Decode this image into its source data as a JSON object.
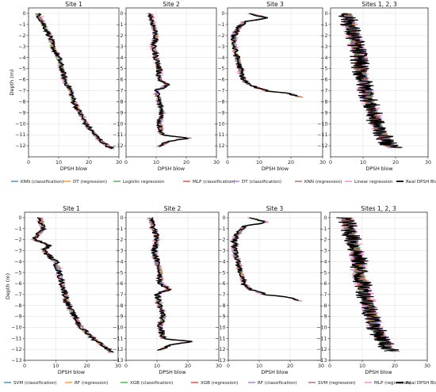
{
  "chart_data": [
    {
      "row": "top",
      "type": "line",
      "ylabel": "Depth (m)",
      "xlabel": "DPSH blow",
      "panels": [
        {
          "title": "Site 1",
          "xlim": [
            0,
            30
          ],
          "xticks": [
            0,
            10,
            20,
            30
          ],
          "ylim": [
            -13,
            0.5
          ],
          "yticks": [
            0,
            -1,
            -2,
            -3,
            -4,
            -5,
            -6,
            -7,
            -8,
            -9,
            -10,
            -11,
            -12
          ],
          "depth_max": 12.3,
          "real_profile": [
            [
              0,
              3
            ],
            [
              1,
              5
            ],
            [
              2,
              7
            ],
            [
              3,
              8
            ],
            [
              4,
              10
            ],
            [
              5,
              11
            ],
            [
              6,
              12
            ],
            [
              7,
              14
            ],
            [
              8,
              15
            ],
            [
              9,
              17
            ],
            [
              10,
              19
            ],
            [
              11,
              22
            ],
            [
              11.8,
              25
            ],
            [
              12.3,
              28
            ]
          ]
        },
        {
          "title": "Site 2",
          "xlim": [
            0,
            30
          ],
          "xticks": [
            0,
            10,
            20,
            30
          ],
          "ylim": [
            -13,
            0.5
          ],
          "yticks": [
            0,
            -1,
            -2,
            -3,
            -4,
            -5,
            -6,
            -7,
            -8,
            -9,
            -10,
            -11,
            -12
          ],
          "depth_max": 12.1,
          "real_profile": [
            [
              0,
              8
            ],
            [
              1,
              9
            ],
            [
              2,
              10
            ],
            [
              3,
              9
            ],
            [
              4,
              10
            ],
            [
              5,
              11
            ],
            [
              6,
              11
            ],
            [
              6.5,
              14
            ],
            [
              7,
              10
            ],
            [
              8,
              11
            ],
            [
              9,
              12
            ],
            [
              10,
              11
            ],
            [
              11,
              12
            ],
            [
              11.3,
              21
            ],
            [
              11.6,
              14
            ],
            [
              12.1,
              11
            ]
          ]
        },
        {
          "title": "Site 3",
          "xlim": [
            0,
            30
          ],
          "xticks": [
            0,
            10,
            20,
            30
          ],
          "ylim": [
            -13,
            0.5
          ],
          "yticks": [
            0,
            -1,
            -2,
            -3,
            -4,
            -5,
            -6,
            -7,
            -8,
            -9,
            -10,
            -11,
            -12
          ],
          "depth_max": 7.6,
          "real_profile": [
            [
              0,
              7
            ],
            [
              0.4,
              12
            ],
            [
              0.8,
              5
            ],
            [
              1.5,
              3
            ],
            [
              2,
              2
            ],
            [
              3,
              2
            ],
            [
              4,
              3
            ],
            [
              5,
              4
            ],
            [
              6,
              5
            ],
            [
              6.5,
              7
            ],
            [
              7,
              12
            ],
            [
              7.3,
              20
            ],
            [
              7.6,
              23
            ]
          ]
        },
        {
          "title": "Sites 1, 2, 3",
          "xlim": [
            0,
            30
          ],
          "xticks": [
            0,
            10,
            20,
            30
          ],
          "ylim": [
            -13,
            0.5
          ],
          "yticks": [
            0,
            -1,
            -2,
            -3,
            -4,
            -5,
            -6,
            -7,
            -8,
            -9,
            -10,
            -11,
            -12
          ],
          "depth_max": 12.2,
          "real_profile": [
            [
              0,
              5
            ],
            [
              1,
              6
            ],
            [
              2,
              7
            ],
            [
              3,
              8
            ],
            [
              4,
              9
            ],
            [
              5,
              9
            ],
            [
              6,
              10
            ],
            [
              7,
              11
            ],
            [
              8,
              12
            ],
            [
              9,
              13
            ],
            [
              10,
              14
            ],
            [
              11,
              16
            ],
            [
              12,
              18
            ],
            [
              12.2,
              20
            ]
          ]
        }
      ],
      "legend": [
        {
          "label": "KNN (classification)",
          "color": "#1f77b4"
        },
        {
          "label": "DT (regression)",
          "color": "#ff7f0e"
        },
        {
          "label": "Logistic regression",
          "color": "#2ca02c"
        },
        {
          "label": "MLP (classification)",
          "color": "#d62728"
        },
        {
          "label": "DT (classification)",
          "color": "#9467bd"
        },
        {
          "label": "KNN (regression)",
          "color": "#8c564b"
        },
        {
          "label": "Linear regression",
          "color": "#e377c2"
        },
        {
          "label": "Real DPSH Blows",
          "color": "#000000"
        }
      ]
    },
    {
      "row": "bottom",
      "type": "line",
      "ylabel": "Depth (m)",
      "xlabel": "DPSH blow",
      "panels": [
        {
          "title": "Site 1",
          "xlim": [
            0,
            30
          ],
          "xticks": [
            0,
            10,
            20,
            30
          ],
          "ylim": [
            -13,
            0.5
          ],
          "yticks": [
            0,
            -1,
            -2,
            -3,
            -4,
            -5,
            -6,
            -7,
            -8,
            -9,
            -10,
            -11,
            -12,
            -13
          ],
          "depth_max": 12.3,
          "real_profile": [
            [
              0,
              5
            ],
            [
              1,
              6
            ],
            [
              2,
              3
            ],
            [
              2.5,
              8
            ],
            [
              3,
              6
            ],
            [
              4,
              10
            ],
            [
              5,
              11
            ],
            [
              6,
              12
            ],
            [
              7,
              13
            ],
            [
              8,
              14
            ],
            [
              9,
              16
            ],
            [
              10,
              18
            ],
            [
              11,
              22
            ],
            [
              11.8,
              26
            ],
            [
              12.3,
              28
            ]
          ]
        },
        {
          "title": "Site 2",
          "xlim": [
            0,
            30
          ],
          "xticks": [
            0,
            10,
            20,
            30
          ],
          "ylim": [
            -13,
            0.5
          ],
          "yticks": [
            0,
            -1,
            -2,
            -3,
            -4,
            -5,
            -6,
            -7,
            -8,
            -9,
            -10,
            -11,
            -12,
            -13
          ],
          "depth_max": 12.1,
          "real_profile": [
            [
              0,
              8
            ],
            [
              1,
              9
            ],
            [
              2,
              10
            ],
            [
              3,
              9
            ],
            [
              4,
              10
            ],
            [
              5,
              11
            ],
            [
              6,
              11
            ],
            [
              6.5,
              14
            ],
            [
              7,
              10
            ],
            [
              8,
              11
            ],
            [
              9,
              12
            ],
            [
              10,
              11
            ],
            [
              11,
              12
            ],
            [
              11.3,
              21
            ],
            [
              11.6,
              14
            ],
            [
              12.1,
              11
            ]
          ]
        },
        {
          "title": "Site 3",
          "xlim": [
            0,
            30
          ],
          "xticks": [
            0,
            10,
            20,
            30
          ],
          "ylim": [
            -13,
            0.5
          ],
          "yticks": [
            0,
            -1,
            -2,
            -3,
            -4,
            -5,
            -6,
            -7,
            -8,
            -9,
            -10,
            -11,
            -12,
            -13
          ],
          "depth_max": 7.6,
          "real_profile": [
            [
              0,
              7
            ],
            [
              0.4,
              12
            ],
            [
              0.8,
              5
            ],
            [
              1.5,
              3
            ],
            [
              2,
              2
            ],
            [
              3,
              2
            ],
            [
              4,
              3
            ],
            [
              5,
              4
            ],
            [
              6,
              5
            ],
            [
              6.5,
              7
            ],
            [
              7,
              12
            ],
            [
              7.3,
              20
            ],
            [
              7.6,
              23
            ]
          ]
        },
        {
          "title": "Sites 1, 2, 3",
          "xlim": [
            0,
            30
          ],
          "xticks": [
            0,
            10,
            20,
            30
          ],
          "ylim": [
            -13,
            0.5
          ],
          "yticks": [
            0,
            -1,
            -2,
            -3,
            -4,
            -5,
            -6,
            -7,
            -8,
            -9,
            -10,
            -11,
            -12,
            -13
          ],
          "depth_max": 12.2,
          "real_profile": [
            [
              0,
              5
            ],
            [
              1,
              6
            ],
            [
              2,
              7
            ],
            [
              3,
              8
            ],
            [
              4,
              9
            ],
            [
              5,
              9
            ],
            [
              6,
              10
            ],
            [
              7,
              11
            ],
            [
              8,
              12
            ],
            [
              9,
              13
            ],
            [
              10,
              14
            ],
            [
              11,
              16
            ],
            [
              12,
              18
            ],
            [
              12.2,
              20
            ]
          ]
        }
      ],
      "legend": [
        {
          "label": "SVM (classification)",
          "color": "#1f77b4"
        },
        {
          "label": "RF (regression)",
          "color": "#ff7f0e"
        },
        {
          "label": "XGB (classification)",
          "color": "#2ca02c"
        },
        {
          "label": "XGB (regression)",
          "color": "#d62728"
        },
        {
          "label": "RF (classification)",
          "color": "#9467bd"
        },
        {
          "label": "SVM (regression)",
          "color": "#8c564b"
        },
        {
          "label": "MLP (regression)",
          "color": "#e377c2"
        },
        {
          "label": "Real DPSH Blows",
          "color": "#000000"
        }
      ]
    }
  ]
}
